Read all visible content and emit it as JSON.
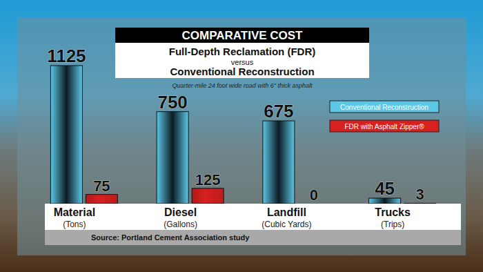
{
  "chart_data": {
    "type": "bar",
    "title": "COMPARATIVE COST",
    "subtitle": [
      "Full-Depth Reclamation (FDR)",
      "versus",
      "Conventional Reconstruction"
    ],
    "note": "Quarter-mile 24 foot wide road with 6\" thick asphalt",
    "source": "Source: Portland Cement Association study",
    "categories": [
      "Material",
      "Diesel",
      "Landfill",
      "Trucks"
    ],
    "category_units": [
      "(Tons)",
      "(Gallons)",
      "(Cubic Yards)",
      "(Trips)"
    ],
    "series": [
      {
        "name": "Conventional Reconstruction",
        "color": "#5cc6e6",
        "values": [
          1125,
          750,
          675,
          45
        ]
      },
      {
        "name": "FDR with Asphalt Zipper®",
        "color": "#d8201f",
        "values": [
          75,
          125,
          0,
          3
        ]
      }
    ],
    "ylim": [
      0,
      1125
    ],
    "tick_labels": false,
    "grid": false,
    "legend": "top-right",
    "data_labels": true
  }
}
